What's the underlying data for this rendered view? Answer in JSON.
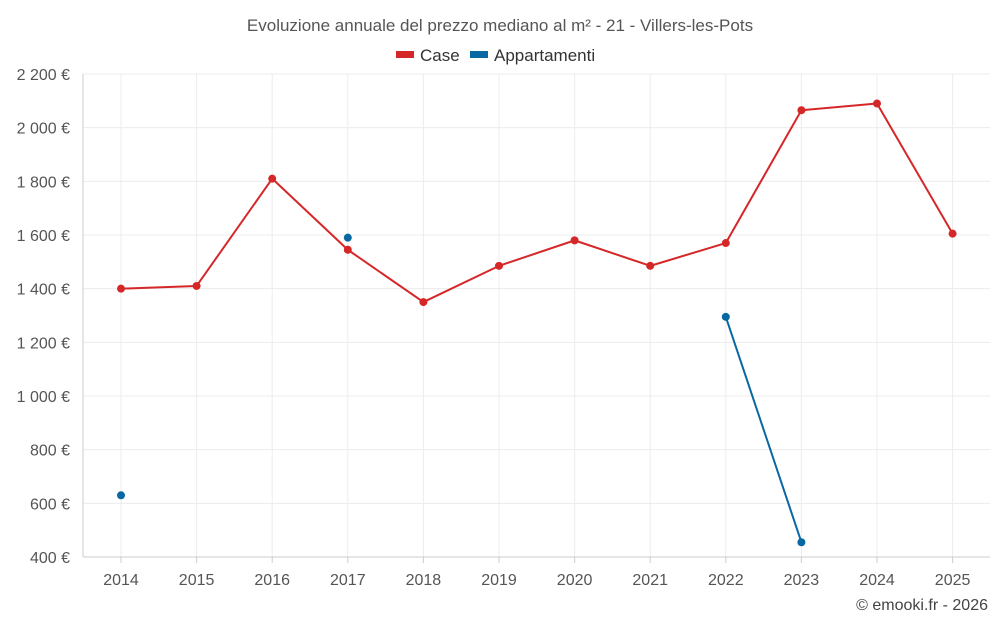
{
  "chart_data": {
    "type": "line",
    "title": "Evoluzione annuale del prezzo mediano al m² - 21 - Villers-les-Pots",
    "categories": [
      "2014",
      "2015",
      "2016",
      "2017",
      "2018",
      "2019",
      "2020",
      "2021",
      "2022",
      "2023",
      "2024",
      "2025"
    ],
    "y_ticks": [
      400,
      600,
      800,
      1000,
      1200,
      1400,
      1600,
      1800,
      2000,
      2200
    ],
    "y_tick_labels": [
      "400 €",
      "600 €",
      "800 €",
      "1 000 €",
      "1 200 €",
      "1 400 €",
      "1 600 €",
      "1 800 €",
      "2 000 €",
      "2 200 €"
    ],
    "ylim": [
      400,
      2200
    ],
    "xlabel": "",
    "ylabel": "",
    "grid": true,
    "legend_position": "top-center",
    "series": [
      {
        "name": "Case",
        "color": "#d62728",
        "values": [
          1400,
          1410,
          1810,
          1545,
          1350,
          1485,
          1580,
          1485,
          1570,
          2065,
          2090,
          1605
        ]
      },
      {
        "name": "Appartamenti",
        "color": "#0868a3",
        "values": [
          630,
          null,
          null,
          1590,
          null,
          null,
          null,
          null,
          1295,
          455,
          null,
          null
        ]
      }
    ]
  },
  "credit": "© emooki.fr - 2026"
}
